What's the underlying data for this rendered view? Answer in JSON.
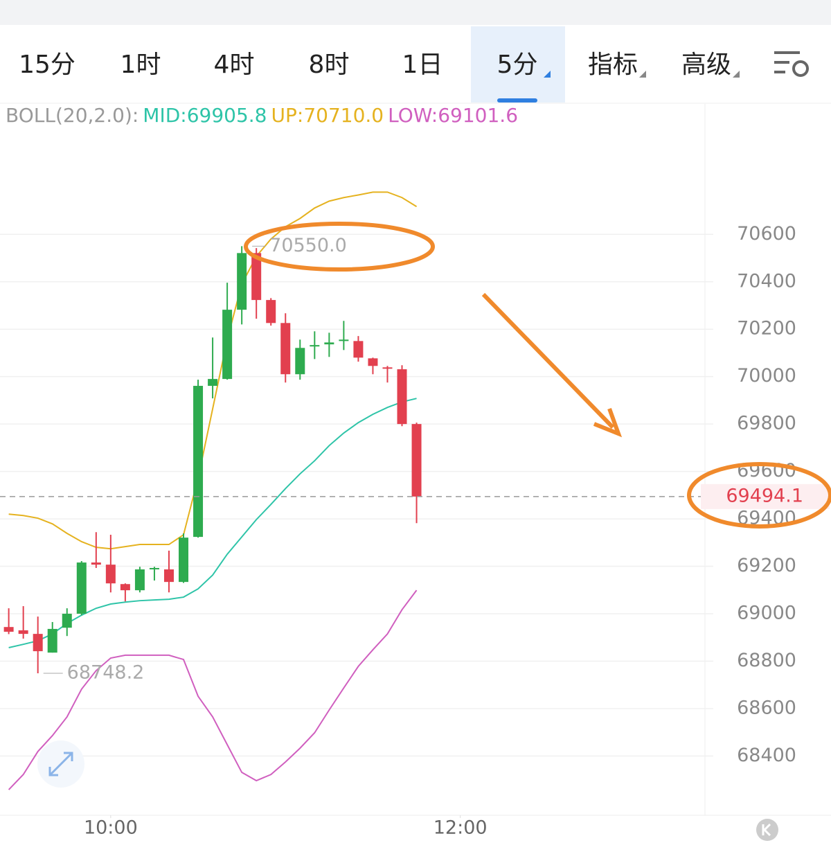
{
  "tabs": [
    "15分",
    "1时",
    "4时",
    "8时",
    "1日",
    "5分",
    "指标",
    "高级"
  ],
  "chart_data": {
    "type": "candlestick",
    "indicator": "BOLL(20,2.0):",
    "x": [
      565,
      570,
      575,
      580,
      585,
      590,
      595,
      600,
      605,
      610,
      615,
      620,
      625,
      630,
      635,
      640,
      645,
      650,
      655,
      660,
      665,
      670,
      675,
      680,
      685,
      690,
      695,
      700,
      705
    ],
    "open": [
      68944,
      68930,
      68915,
      68836,
      68941,
      69000,
      69216,
      69207,
      69125,
      69099,
      69187,
      69187,
      69134,
      69324,
      69961,
      69990,
      70282,
      70521,
      70323,
      70226,
      70010,
      70127,
      70136,
      70150,
      70150,
      70077,
      70039,
      70031,
      69800
    ],
    "high": [
      69023,
      69032,
      68988,
      68965,
      69023,
      69222,
      69344,
      69333,
      69128,
      69198,
      69198,
      69266,
      69339,
      69987,
      70165,
      70396,
      70550,
      70542,
      70331,
      70267,
      70156,
      70191,
      70185,
      70235,
      70171,
      70080,
      70045,
      70048,
      69806
    ],
    "low": [
      68914,
      68895,
      68749,
      68836,
      68906,
      68994,
      69193,
      69090,
      69052,
      69090,
      69140,
      69090,
      69130,
      69321,
      69908,
      69987,
      70220,
      70244,
      70215,
      69975,
      69987,
      70074,
      70083,
      70112,
      70063,
      70010,
      69975,
      69791,
      69382
    ],
    "close": [
      68924,
      68915,
      68842,
      68936,
      69000,
      69216,
      69207,
      69128,
      69099,
      69187,
      69193,
      69134,
      69321,
      69961,
      69990,
      70282,
      70521,
      70323,
      70226,
      70010,
      70121,
      70133,
      70144,
      70156,
      70080,
      70045,
      70034,
      69800,
      69494.1
    ],
    "up_color": "#2eab4f",
    "down_color": "#e2404f",
    "lines": [
      {
        "label": "MID:69905.8",
        "color": "#2ec4a8",
        "values": [
          68857,
          68871,
          68886,
          68915,
          68959,
          68994,
          69023,
          69041,
          69049,
          69055,
          69058,
          69061,
          69070,
          69105,
          69163,
          69251,
          69324,
          69397,
          69461,
          69528,
          69590,
          69645,
          69709,
          69762,
          69806,
          69841,
          69870,
          69893,
          69908
        ]
      },
      {
        "label": "UP:70710.0",
        "color": "#e5b21f",
        "values": [
          69420,
          69414,
          69403,
          69379,
          69339,
          69304,
          69280,
          69274,
          69283,
          69292,
          69292,
          69292,
          69333,
          69572,
          69864,
          70156,
          70390,
          70507,
          70580,
          70632,
          70667,
          70711,
          70740,
          70755,
          70766,
          70778,
          70778,
          70755,
          70717
        ]
      },
      {
        "label": "LOW:69101.6",
        "color": "#d05fbf",
        "values": [
          68258,
          68322,
          68419,
          68486,
          68565,
          68682,
          68760,
          68813,
          68825,
          68825,
          68825,
          68825,
          68807,
          68652,
          68565,
          68448,
          68331,
          68296,
          68322,
          68375,
          68433,
          68498,
          68594,
          68687,
          68778,
          68848,
          68915,
          69017,
          69099
        ]
      }
    ],
    "high_label": "70550.0",
    "low_label": "68748.2",
    "last_price": 69494.1,
    "xlim": [
      562,
      804
    ],
    "xticks": [
      {
        "value": 600,
        "label": "10:00"
      },
      {
        "value": 720,
        "label": "12:00"
      }
    ],
    "ylim": [
      68150,
      71150
    ],
    "yticks": [
      68400,
      68600,
      68800,
      69000,
      69200,
      69400,
      69600,
      69800,
      70000,
      70200,
      70400,
      70600
    ],
    "grid": true
  }
}
